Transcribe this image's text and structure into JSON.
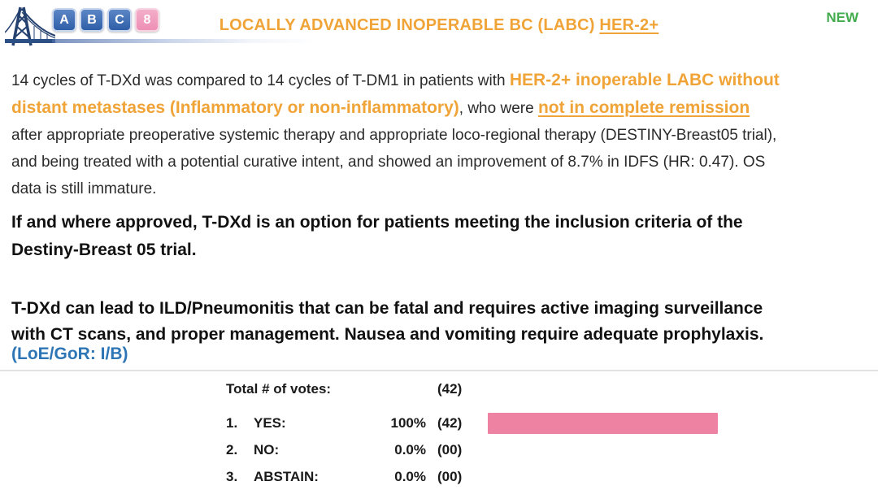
{
  "header": {
    "logo": {
      "letters": [
        "A",
        "B",
        "C"
      ],
      "number": "8"
    },
    "title": {
      "main": "LOCALLY ADVANCED INOPERABLE BC (LABC) ",
      "underlined": "HER-2+"
    },
    "badge_new": "NEW"
  },
  "colors": {
    "accent_orange": "#F0A437",
    "badge_green": "#43AC4F",
    "note_blue": "#2E75B6",
    "bar_pink": "#EE82A3"
  },
  "paragraph_intro": {
    "segments": [
      {
        "text": "14 cycles of T-DXd was compared to 14 cycles of T-DM1 in patients with ",
        "style": "black"
      },
      {
        "text": "HER-2+ inoperable LABC without\ndistant metastases (Inflammatory or non-inflammatory)",
        "style": "orange-bold"
      },
      {
        "text": ", who were ",
        "style": "black"
      },
      {
        "text": "not in complete remission",
        "style": "orange-bold-underline"
      },
      {
        "text": "\nafter appropriate preoperative systemic therapy and appropriate loco-regional therapy (DESTINY-Breast05 trial),\nand being treated with a potential curative intent, and showed an improvement of 8.7% in IDFS (HR: 0.47). OS\ndata is still immature.",
        "style": "black"
      }
    ]
  },
  "statement_approval": "If and where approved, T-DXd is an option for patients meeting the inclusion criteria of the\nDestiny-Breast 05 trial.",
  "statement_safety": "T-DXd can lead to ILD/Pneumonitis that can be fatal and requires active imaging surveillance\nwith CT scans, and proper management. Nausea and vomiting require adequate prophylaxis.",
  "loe_gor": "(LoE/GoR: I/B)",
  "votes": {
    "total_label": "Total # of votes:",
    "total_count": "(42)",
    "rows": [
      {
        "num": "1.",
        "label": "YES:",
        "pct": "100%",
        "count": "(42)",
        "bar_pct": 100
      },
      {
        "num": "2.",
        "label": "NO:",
        "pct": "0.0%",
        "count": "(00)",
        "bar_pct": 0
      },
      {
        "num": "3.",
        "label": "ABSTAIN:",
        "pct": "0.0%",
        "count": "(00)",
        "bar_pct": 0
      }
    ]
  }
}
